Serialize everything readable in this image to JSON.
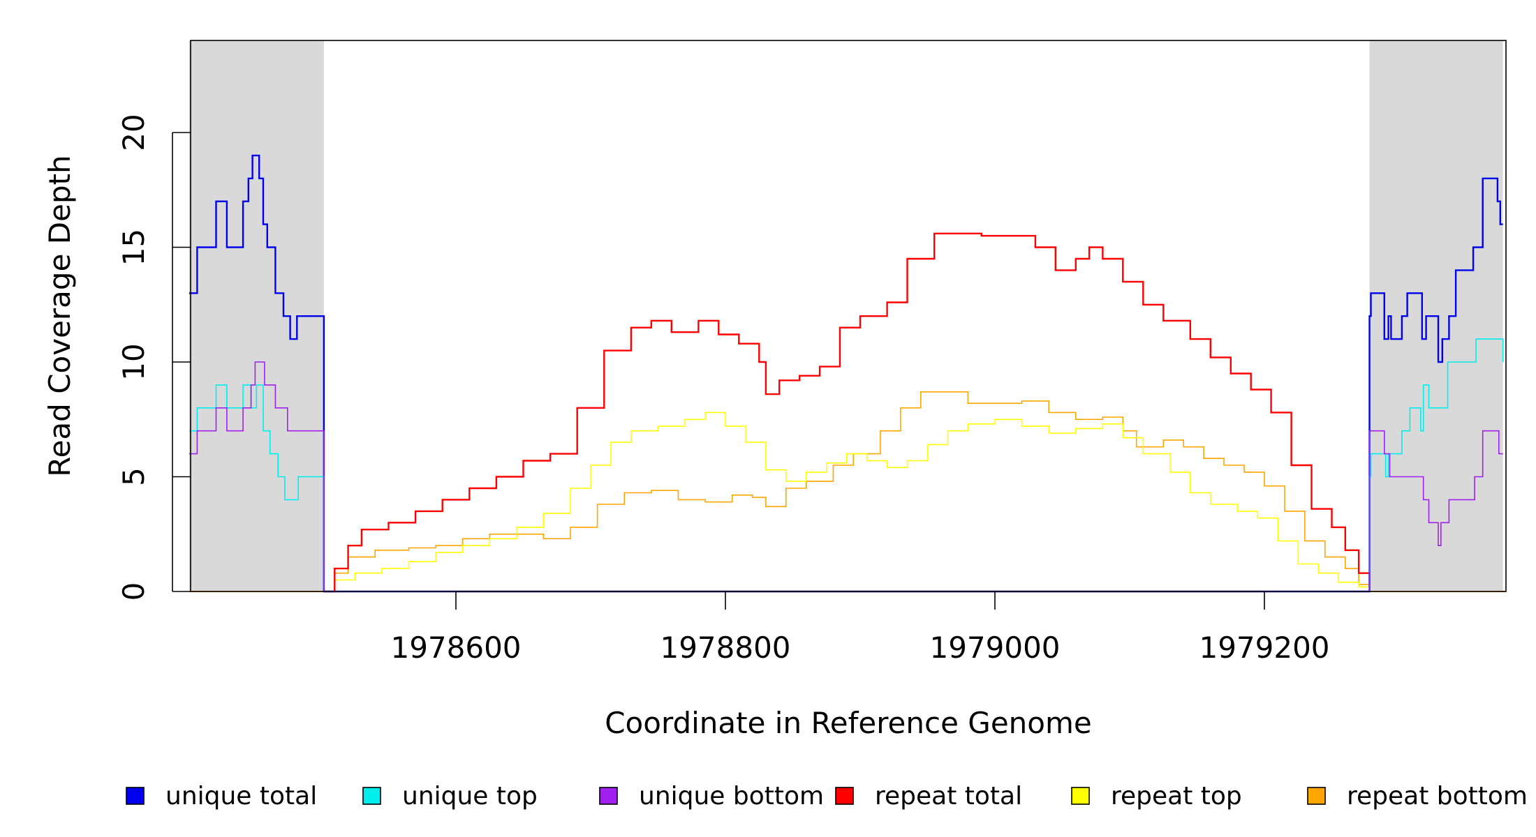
{
  "chart_data": {
    "type": "line",
    "title": "",
    "xlabel": "Coordinate in Reference Genome",
    "ylabel": "Read Coverage Depth",
    "xlim": [
      1978402,
      1979377
    ],
    "ylim": [
      0,
      24
    ],
    "x_ticks": [
      1978600,
      1978800,
      1979000,
      1979200
    ],
    "x_tick_labels": [
      "1978600",
      "1978800",
      "1979000",
      "1979200"
    ],
    "y_ticks": [
      0,
      5,
      10,
      15,
      20
    ],
    "y_tick_labels": [
      "0",
      "5",
      "10",
      "15",
      "20"
    ],
    "shaded_regions": [
      {
        "x0": 1978402,
        "x1": 1978502
      },
      {
        "x0": 1979278,
        "x1": 1979377
      }
    ],
    "shade_color": "#d9d9d9",
    "grid": false,
    "legend_position": "bottom",
    "series": [
      {
        "name": "unique total",
        "color": "#0000ee",
        "width": 2.4,
        "points": [
          [
            1978402,
            13
          ],
          [
            1978408,
            15
          ],
          [
            1978422,
            17
          ],
          [
            1978430,
            15
          ],
          [
            1978442,
            17
          ],
          [
            1978446,
            18
          ],
          [
            1978449,
            19
          ],
          [
            1978454,
            18
          ],
          [
            1978457,
            16
          ],
          [
            1978460,
            15
          ],
          [
            1978466,
            13
          ],
          [
            1978472,
            12
          ],
          [
            1978477,
            11
          ],
          [
            1978482,
            12
          ],
          [
            1978502,
            12
          ],
          [
            1978502,
            0
          ],
          [
            1979278,
            0
          ],
          [
            1979278,
            12
          ],
          [
            1979279,
            13
          ],
          [
            1979289,
            11
          ],
          [
            1979292,
            12
          ],
          [
            1979294,
            11
          ],
          [
            1979302,
            12
          ],
          [
            1979306,
            13
          ],
          [
            1979317,
            11
          ],
          [
            1979320,
            12
          ],
          [
            1979329,
            10
          ],
          [
            1979332,
            11
          ],
          [
            1979337,
            12
          ],
          [
            1979342,
            14
          ],
          [
            1979355,
            15
          ],
          [
            1979362,
            18
          ],
          [
            1979373,
            17
          ],
          [
            1979375,
            16
          ],
          [
            1979377,
            16
          ]
        ]
      },
      {
        "name": "unique top",
        "color": "#00eeee",
        "width": 1.6,
        "points": [
          [
            1978402,
            7
          ],
          [
            1978408,
            8
          ],
          [
            1978422,
            9
          ],
          [
            1978430,
            8
          ],
          [
            1978442,
            9
          ],
          [
            1978448,
            8
          ],
          [
            1978452,
            9
          ],
          [
            1978457,
            7
          ],
          [
            1978462,
            6
          ],
          [
            1978468,
            5
          ],
          [
            1978473,
            4
          ],
          [
            1978483,
            5
          ],
          [
            1978502,
            5
          ],
          [
            1978502,
            0
          ],
          [
            1979278,
            0
          ],
          [
            1979278,
            5
          ],
          [
            1979279,
            6
          ],
          [
            1979290,
            5
          ],
          [
            1979292,
            6
          ],
          [
            1979302,
            7
          ],
          [
            1979308,
            8
          ],
          [
            1979316,
            7
          ],
          [
            1979318,
            9
          ],
          [
            1979322,
            8
          ],
          [
            1979336,
            10
          ],
          [
            1979357,
            11
          ],
          [
            1979377,
            10
          ]
        ]
      },
      {
        "name": "unique bottom",
        "color": "#a020f0",
        "width": 1.6,
        "points": [
          [
            1978402,
            6
          ],
          [
            1978408,
            7
          ],
          [
            1978422,
            8
          ],
          [
            1978430,
            7
          ],
          [
            1978442,
            8
          ],
          [
            1978448,
            9
          ],
          [
            1978451,
            10
          ],
          [
            1978458,
            9
          ],
          [
            1978466,
            8
          ],
          [
            1978475,
            7
          ],
          [
            1978502,
            7
          ],
          [
            1978502,
            0
          ],
          [
            1979278,
            0
          ],
          [
            1979278,
            7
          ],
          [
            1979289,
            6
          ],
          [
            1979293,
            5
          ],
          [
            1979318,
            4
          ],
          [
            1979322,
            3
          ],
          [
            1979329,
            2
          ],
          [
            1979331,
            3
          ],
          [
            1979337,
            4
          ],
          [
            1979356,
            5
          ],
          [
            1979362,
            7
          ],
          [
            1979374,
            6
          ],
          [
            1979377,
            6
          ]
        ]
      },
      {
        "name": "repeat total",
        "color": "#ff0000",
        "width": 2.4,
        "points": [
          [
            1978502,
            0
          ],
          [
            1978510,
            1
          ],
          [
            1978520,
            2
          ],
          [
            1978530,
            2.7
          ],
          [
            1978550,
            3
          ],
          [
            1978570,
            3.5
          ],
          [
            1978590,
            4
          ],
          [
            1978610,
            4.5
          ],
          [
            1978630,
            5
          ],
          [
            1978650,
            5.7
          ],
          [
            1978670,
            6
          ],
          [
            1978690,
            8
          ],
          [
            1978710,
            10.5
          ],
          [
            1978730,
            11.5
          ],
          [
            1978745,
            11.8
          ],
          [
            1978760,
            11.3
          ],
          [
            1978780,
            11.8
          ],
          [
            1978795,
            11.2
          ],
          [
            1978810,
            10.8
          ],
          [
            1978825,
            10
          ],
          [
            1978830,
            8.6
          ],
          [
            1978840,
            9.2
          ],
          [
            1978855,
            9.4
          ],
          [
            1978870,
            9.8
          ],
          [
            1978885,
            11.5
          ],
          [
            1978900,
            12
          ],
          [
            1978920,
            12.6
          ],
          [
            1978935,
            14.5
          ],
          [
            1978955,
            15.6
          ],
          [
            1978975,
            15.6
          ],
          [
            1978990,
            15.5
          ],
          [
            1979010,
            15.5
          ],
          [
            1979030,
            15
          ],
          [
            1979045,
            14
          ],
          [
            1979060,
            14.5
          ],
          [
            1979070,
            15
          ],
          [
            1979080,
            14.5
          ],
          [
            1979095,
            13.5
          ],
          [
            1979110,
            12.5
          ],
          [
            1979125,
            11.8
          ],
          [
            1979145,
            11
          ],
          [
            1979160,
            10.2
          ],
          [
            1979175,
            9.5
          ],
          [
            1979190,
            8.8
          ],
          [
            1979205,
            7.8
          ],
          [
            1979220,
            5.5
          ],
          [
            1979235,
            3.6
          ],
          [
            1979250,
            2.8
          ],
          [
            1979260,
            1.8
          ],
          [
            1979270,
            0.8
          ],
          [
            1979278,
            0
          ]
        ]
      },
      {
        "name": "repeat top",
        "color": "#ffff00",
        "width": 1.6,
        "points": [
          [
            1978502,
            0
          ],
          [
            1978510,
            0.5
          ],
          [
            1978525,
            0.8
          ],
          [
            1978545,
            1
          ],
          [
            1978565,
            1.3
          ],
          [
            1978585,
            1.7
          ],
          [
            1978605,
            2
          ],
          [
            1978625,
            2.3
          ],
          [
            1978645,
            2.8
          ],
          [
            1978665,
            3.4
          ],
          [
            1978685,
            4.5
          ],
          [
            1978700,
            5.5
          ],
          [
            1978715,
            6.5
          ],
          [
            1978730,
            7
          ],
          [
            1978750,
            7.2
          ],
          [
            1978770,
            7.5
          ],
          [
            1978785,
            7.8
          ],
          [
            1978800,
            7.2
          ],
          [
            1978815,
            6.5
          ],
          [
            1978830,
            5.3
          ],
          [
            1978845,
            4.8
          ],
          [
            1978860,
            5.2
          ],
          [
            1978875,
            5.6
          ],
          [
            1978890,
            6
          ],
          [
            1978905,
            5.7
          ],
          [
            1978920,
            5.4
          ],
          [
            1978935,
            5.7
          ],
          [
            1978950,
            6.4
          ],
          [
            1978965,
            7
          ],
          [
            1978980,
            7.3
          ],
          [
            1979000,
            7.5
          ],
          [
            1979020,
            7.2
          ],
          [
            1979040,
            6.9
          ],
          [
            1979060,
            7.1
          ],
          [
            1979080,
            7.3
          ],
          [
            1979095,
            6.7
          ],
          [
            1979110,
            6
          ],
          [
            1979130,
            5.2
          ],
          [
            1979145,
            4.3
          ],
          [
            1979160,
            3.8
          ],
          [
            1979180,
            3.5
          ],
          [
            1979195,
            3.2
          ],
          [
            1979210,
            2.2
          ],
          [
            1979225,
            1.2
          ],
          [
            1979240,
            0.8
          ],
          [
            1979255,
            0.4
          ],
          [
            1979270,
            0.2
          ],
          [
            1979278,
            0
          ]
        ]
      },
      {
        "name": "repeat bottom",
        "color": "#ffa500",
        "width": 1.6,
        "points": [
          [
            1978502,
            0
          ],
          [
            1978510,
            0.8
          ],
          [
            1978520,
            1.5
          ],
          [
            1978540,
            1.8
          ],
          [
            1978565,
            1.9
          ],
          [
            1978585,
            2
          ],
          [
            1978605,
            2.3
          ],
          [
            1978625,
            2.5
          ],
          [
            1978645,
            2.5
          ],
          [
            1978665,
            2.3
          ],
          [
            1978685,
            2.8
          ],
          [
            1978705,
            3.8
          ],
          [
            1978725,
            4.3
          ],
          [
            1978745,
            4.4
          ],
          [
            1978765,
            4
          ],
          [
            1978785,
            3.9
          ],
          [
            1978805,
            4.2
          ],
          [
            1978820,
            4.1
          ],
          [
            1978830,
            3.7
          ],
          [
            1978845,
            4.5
          ],
          [
            1978860,
            4.8
          ],
          [
            1978880,
            5.5
          ],
          [
            1978895,
            6
          ],
          [
            1978915,
            7
          ],
          [
            1978930,
            8
          ],
          [
            1978945,
            8.7
          ],
          [
            1978965,
            8.7
          ],
          [
            1978980,
            8.2
          ],
          [
            1979000,
            8.2
          ],
          [
            1979020,
            8.3
          ],
          [
            1979040,
            7.8
          ],
          [
            1979060,
            7.5
          ],
          [
            1979080,
            7.6
          ],
          [
            1979095,
            7
          ],
          [
            1979105,
            6.3
          ],
          [
            1979125,
            6.6
          ],
          [
            1979140,
            6.3
          ],
          [
            1979155,
            5.8
          ],
          [
            1979170,
            5.5
          ],
          [
            1979185,
            5.2
          ],
          [
            1979200,
            4.6
          ],
          [
            1979215,
            3.5
          ],
          [
            1979230,
            2.2
          ],
          [
            1979245,
            1.5
          ],
          [
            1979260,
            1
          ],
          [
            1979270,
            0.3
          ],
          [
            1979278,
            0
          ]
        ]
      }
    ],
    "baseline_series": {
      "color": "#ffa500",
      "value": 0
    }
  },
  "legend": [
    {
      "label": "unique total",
      "color": "#0000ee"
    },
    {
      "label": "unique top",
      "color": "#00eeee"
    },
    {
      "label": "unique bottom",
      "color": "#a020f0"
    },
    {
      "label": "repeat total",
      "color": "#ff0000"
    },
    {
      "label": "repeat top",
      "color": "#ffff00"
    },
    {
      "label": "repeat bottom",
      "color": "#ffa500"
    }
  ]
}
